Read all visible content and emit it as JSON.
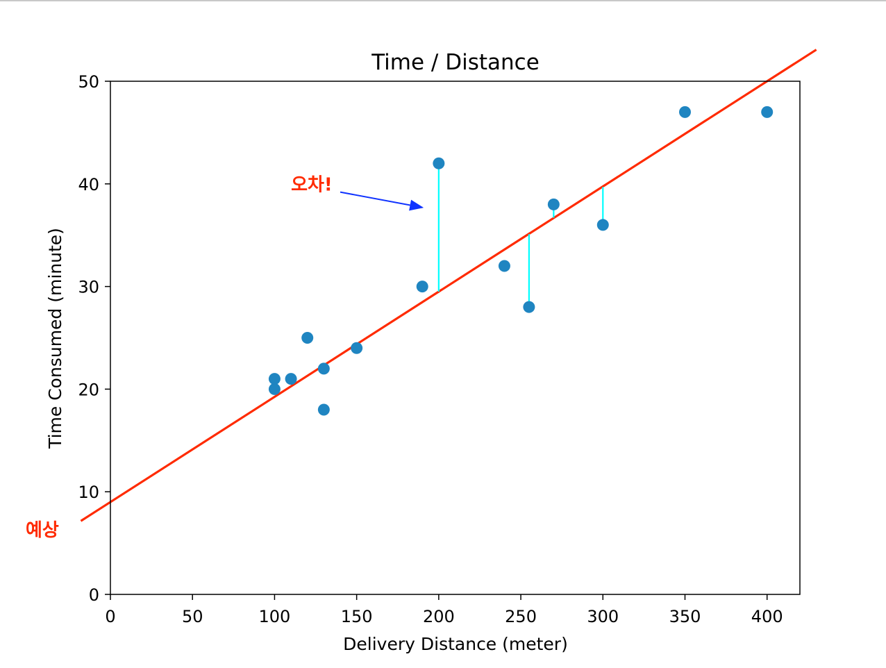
{
  "chart_data": {
    "type": "scatter",
    "title": "Time / Distance",
    "xlabel": "Delivery Distance (meter)",
    "ylabel": "Time Consumed (minute)",
    "xlim": [
      0,
      420
    ],
    "ylim": [
      0,
      50
    ],
    "x_ticks": [
      "0",
      "50",
      "100",
      "150",
      "200",
      "250",
      "300",
      "350",
      "400"
    ],
    "y_ticks": [
      "0",
      "10",
      "20",
      "30",
      "40",
      "50"
    ],
    "points": {
      "x": [
        100,
        100,
        110,
        120,
        130,
        130,
        150,
        190,
        200,
        240,
        255,
        270,
        300,
        350,
        400
      ],
      "y": [
        20,
        21,
        21,
        25,
        22,
        18,
        24,
        30,
        42,
        32,
        28,
        38,
        36,
        47,
        47
      ]
    },
    "regression_line": {
      "intercept": 9.0,
      "slope": 0.1025,
      "x_range": [
        -18,
        430
      ]
    },
    "residuals": [
      {
        "x": 200,
        "y_point": 42,
        "y_line": 29.5
      },
      {
        "x": 255,
        "y_point": 28,
        "y_line": 35.1
      },
      {
        "x": 270,
        "y_point": 38,
        "y_line": 36.7
      },
      {
        "x": 300,
        "y_point": 36,
        "y_line": 39.7
      }
    ],
    "annotations": {
      "error_label": "오차!",
      "error_label_at": [
        110,
        39.6
      ],
      "error_arrow_from": [
        140,
        39.2
      ],
      "error_arrow_to": [
        190,
        37.7
      ],
      "prediction_label": "예상"
    },
    "grid": false,
    "colors": {
      "points": "#1f85c1",
      "line": "#ff2a00",
      "residual": "#00ffff",
      "arrow": "#1033ff",
      "annotation_text": "#ff2a00"
    }
  }
}
